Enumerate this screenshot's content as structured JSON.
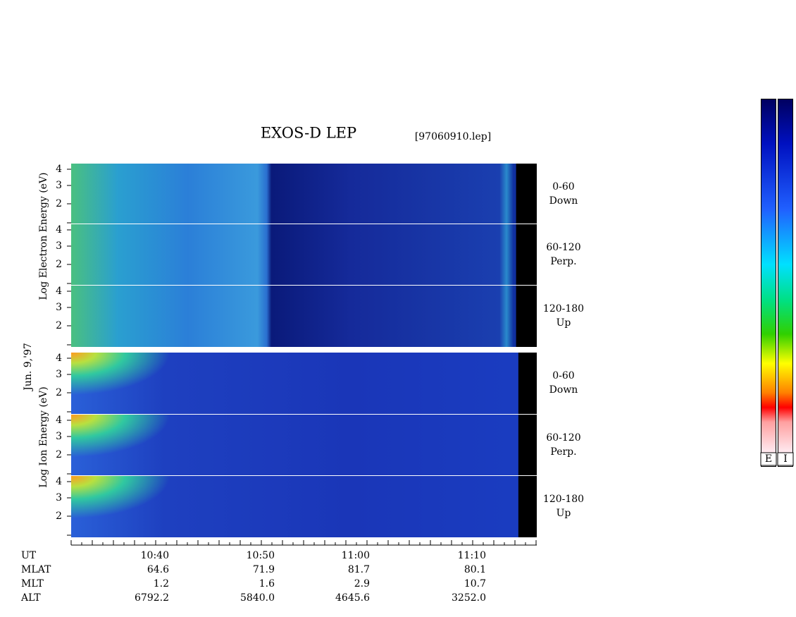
{
  "title": "EXOS-D LEP",
  "file": "[97060910.lep]",
  "date_label": "Jun. 9,'97",
  "electron_axis_label": "Log Electron Energy (eV)",
  "ion_axis_label": "Log Ion Energy (eV)",
  "panel_ticks": [
    "4",
    "3",
    "2"
  ],
  "electron_panels": [
    {
      "range": "0-60",
      "direction": "Down"
    },
    {
      "range": "60-120",
      "direction": "Perp."
    },
    {
      "range": "120-180",
      "direction": "Up"
    }
  ],
  "ion_panels": [
    {
      "range": "0-60",
      "direction": "Down"
    },
    {
      "range": "60-120",
      "direction": "Perp."
    },
    {
      "range": "120-180",
      "direction": "Up"
    }
  ],
  "colorbar_labels": [
    "E",
    "I"
  ],
  "ephemeris": {
    "row_labels": [
      "UT",
      "MLAT",
      "MLT",
      "ALT"
    ],
    "rows": [
      [
        "10:40",
        "10:50",
        "11:00",
        "11:10"
      ],
      [
        "64.6",
        "71.9",
        "81.7",
        "80.1"
      ],
      [
        "1.2",
        "1.6",
        "2.9",
        "10.7"
      ],
      [
        "6792.2",
        "5840.0",
        "4645.6",
        "3252.0"
      ]
    ]
  }
}
